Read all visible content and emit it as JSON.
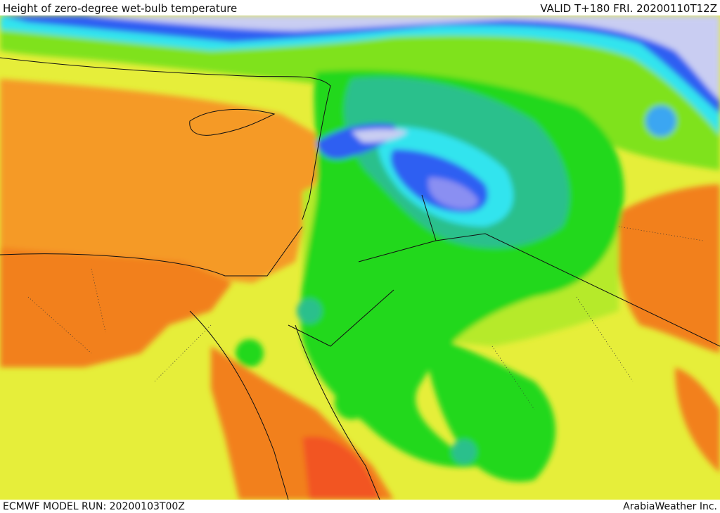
{
  "header": {
    "title": "Height of zero-degree wet-bulb temperature",
    "valid": "VALID T+180 FRI. 20200110T12Z"
  },
  "footer": {
    "model_run": "ECMWF MODEL RUN: 20200103T00Z",
    "credit": "ArabiaWeather Inc."
  },
  "colors": {
    "sea": "#f59a25",
    "orange": "#f2801e",
    "orange_red": "#f25522",
    "yellow": "#e6ee3a",
    "yellow_green": "#b6ea2a",
    "light_green": "#7fe21c",
    "green": "#22d81e",
    "teal": "#2cc08c",
    "cyan": "#33e4ee",
    "light_blue": "#3aa6f2",
    "blue": "#2f5ef2",
    "violet": "#8a8ff2",
    "lavender": "#c9cdf2"
  }
}
